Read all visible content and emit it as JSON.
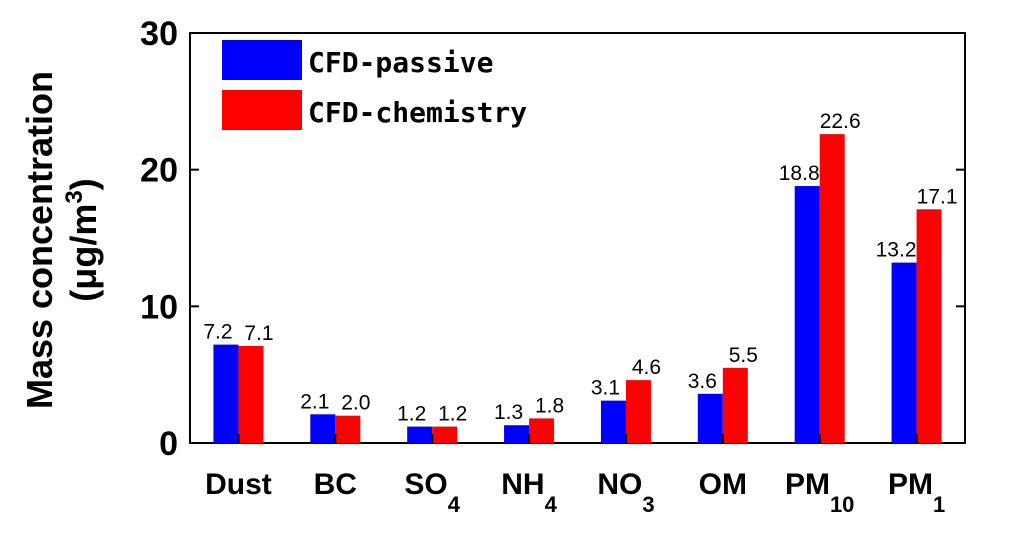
{
  "chart_data": {
    "type": "bar",
    "categories": [
      {
        "base": "Dust",
        "sub": ""
      },
      {
        "base": "BC",
        "sub": ""
      },
      {
        "base": "SO",
        "sub": "4"
      },
      {
        "base": "NH",
        "sub": "4"
      },
      {
        "base": "NO",
        "sub": "3"
      },
      {
        "base": "OM",
        "sub": ""
      },
      {
        "base": "PM",
        "sub": "10"
      },
      {
        "base": "PM",
        "sub": "1"
      }
    ],
    "series": [
      {
        "name": "CFD-passive",
        "color": "#0000ff",
        "values": [
          7.2,
          2.1,
          1.2,
          1.3,
          3.1,
          3.6,
          18.8,
          13.2
        ],
        "labels": [
          "7.2",
          "2.1",
          "1.2",
          "1.3",
          "3.1",
          "3.6",
          "18.8",
          "13.2"
        ]
      },
      {
        "name": "CFD-chemistry",
        "color": "#ff0000",
        "values": [
          7.1,
          2.0,
          1.2,
          1.8,
          4.6,
          5.5,
          22.6,
          17.1
        ],
        "labels": [
          "7.1",
          "2.0",
          "1.2",
          "1.8",
          "4.6",
          "5.5",
          "22.6",
          "17.1"
        ]
      }
    ],
    "ylabel_line1": "Mass concentration",
    "ylabel_line2_pre": "(μg/m",
    "ylabel_line2_sup": "3",
    "ylabel_line2_post": ")",
    "ylim": [
      0,
      30
    ],
    "yticks": [
      "0",
      "10",
      "20",
      "30"
    ],
    "ytick_values": [
      0,
      10,
      20,
      30
    ],
    "legend_position": "top-left",
    "grid": false
  }
}
